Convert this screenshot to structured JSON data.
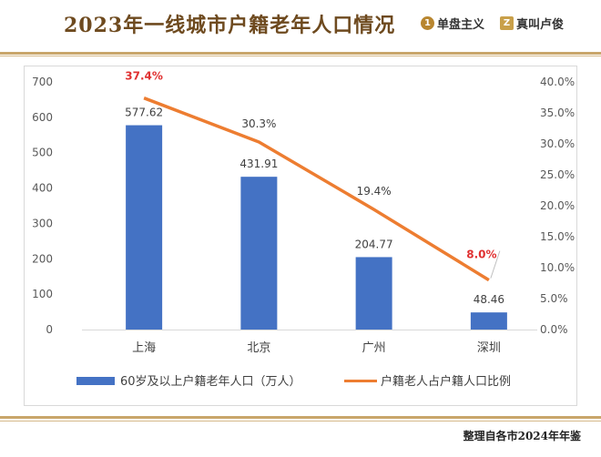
{
  "header": {
    "title": "2023年一线城市户籍老年人口情况",
    "brands": [
      {
        "logo": "1",
        "name": "单盘主义"
      },
      {
        "logo": "Z",
        "name": "真叫卢俊"
      }
    ]
  },
  "footer": {
    "text": "整理自各市2024年年鉴"
  },
  "colors": {
    "bar": "#4472c4",
    "line": "#ed7d31",
    "highlight": "#e03131",
    "title": "#6e4a1f"
  },
  "chart_data": {
    "type": "bar",
    "categories": [
      "上海",
      "北京",
      "广州",
      "深圳"
    ],
    "series": [
      {
        "name": "60岁及以上户籍老年人口（万人）",
        "type": "bar",
        "axis": "left",
        "values": [
          577.62,
          431.91,
          204.77,
          48.46
        ],
        "labels": [
          "577.62",
          "431.91",
          "204.77",
          "48.46"
        ]
      },
      {
        "name": "户籍老人占户籍人口比例",
        "type": "line",
        "axis": "right",
        "values": [
          37.4,
          30.3,
          19.4,
          8.0
        ],
        "labels": [
          "37.4%",
          "30.3%",
          "19.4%",
          "8.0%"
        ],
        "highlighted": [
          true,
          false,
          false,
          true
        ]
      }
    ],
    "y_left": {
      "min": 0,
      "max": 700,
      "step": 100,
      "ticks": [
        "0",
        "100",
        "200",
        "300",
        "400",
        "500",
        "600",
        "700"
      ]
    },
    "y_right": {
      "min": 0,
      "max": 40,
      "step": 5,
      "ticks": [
        "0.0%",
        "5.0%",
        "10.0%",
        "15.0%",
        "20.0%",
        "25.0%",
        "30.0%",
        "35.0%",
        "40.0%"
      ]
    },
    "grid": false,
    "legend": "bottom"
  }
}
